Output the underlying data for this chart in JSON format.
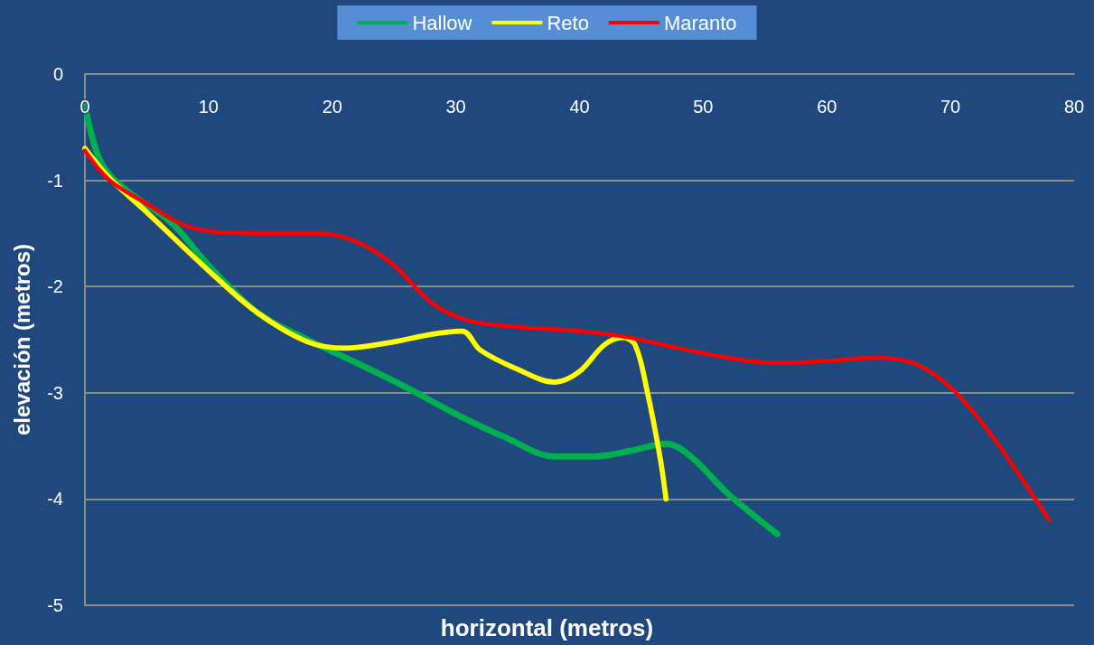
{
  "chart_data": {
    "type": "line",
    "xlabel": "horizontal (metros)",
    "ylabel": "elevación (metros)",
    "xlim": [
      0,
      80
    ],
    "xticks": [
      0,
      10,
      20,
      30,
      40,
      50,
      60,
      70,
      80
    ],
    "ylim": [
      -5,
      0
    ],
    "yticks": [
      -5,
      -4,
      -3,
      -2,
      -1,
      0
    ],
    "grid": "y",
    "legend": "top",
    "marker": "none",
    "line_style": "solid",
    "series": [
      {
        "name": "Hallow",
        "color": "#00b050",
        "x": [
          0,
          1,
          2,
          4,
          7,
          10,
          14,
          18,
          22,
          26,
          30,
          34,
          38,
          41,
          44,
          47,
          49,
          52,
          56
        ],
        "values": [
          -0.3,
          -0.75,
          -0.95,
          -1.15,
          -1.4,
          -1.8,
          -2.25,
          -2.5,
          -2.72,
          -2.95,
          -3.2,
          -3.42,
          -3.6,
          -3.6,
          -3.55,
          -3.48,
          -3.6,
          -3.95,
          -4.33
        ]
      },
      {
        "name": "Reto",
        "color": "#ffff00",
        "x": [
          0,
          2,
          5,
          10,
          14,
          18,
          21,
          25,
          28,
          30.5,
          32,
          35,
          38,
          40,
          42,
          43.5,
          44.5,
          45.5,
          46.5,
          47
        ],
        "values": [
          -0.7,
          -0.98,
          -1.3,
          -1.85,
          -2.25,
          -2.52,
          -2.58,
          -2.52,
          -2.45,
          -2.42,
          -2.6,
          -2.78,
          -2.9,
          -2.8,
          -2.55,
          -2.48,
          -2.55,
          -3.0,
          -3.6,
          -4.0
        ]
      },
      {
        "name": "Maranto",
        "color": "#ff0000",
        "x": [
          0,
          2,
          5,
          8,
          11,
          15,
          19,
          22,
          25,
          28,
          31,
          35,
          40,
          44,
          48,
          52,
          56,
          60,
          64,
          67,
          70,
          73,
          76,
          78
        ],
        "values": [
          -0.72,
          -1.0,
          -1.22,
          -1.42,
          -1.49,
          -1.5,
          -1.5,
          -1.58,
          -1.8,
          -2.15,
          -2.32,
          -2.38,
          -2.42,
          -2.48,
          -2.58,
          -2.67,
          -2.72,
          -2.7,
          -2.67,
          -2.72,
          -2.95,
          -3.35,
          -3.85,
          -4.2
        ]
      }
    ]
  }
}
